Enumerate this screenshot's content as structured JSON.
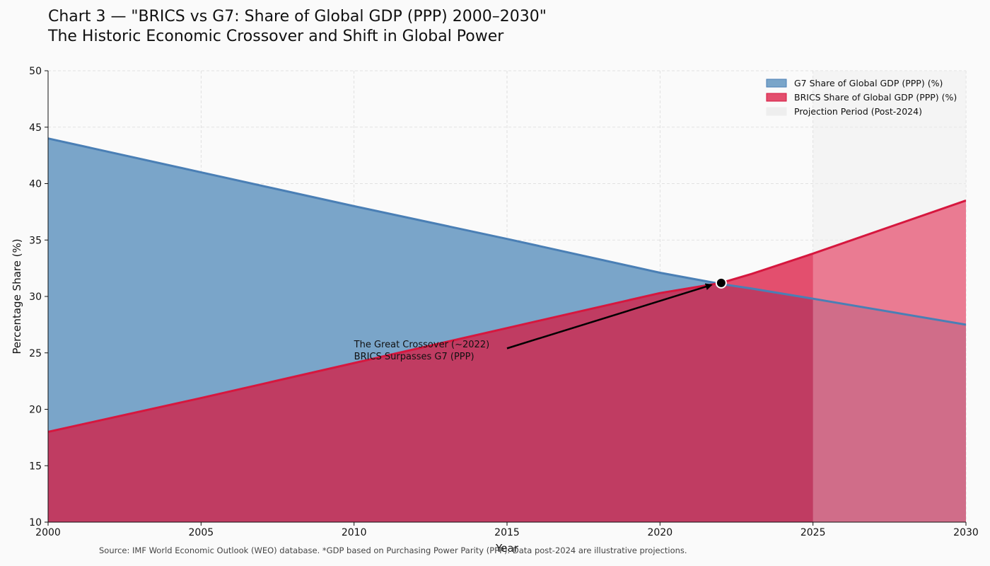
{
  "header": {
    "title": "Chart 3 — \"BRICS vs G7: Share of Global GDP (PPP) 2000–2030\"",
    "subtitle": "The Historic Economic Crossover and Shift in Global Power"
  },
  "footer": {
    "source": "Source: IMF World Economic Outlook (WEO) database. *GDP based on Purchasing Power Parity (PPP). Data post-2024 are illustrative projections."
  },
  "colors": {
    "g7_fill": "#7aa5c9",
    "g7_line": "#4a7fb5",
    "brics_fill": "#c03c62",
    "brics_line": "#d6173e",
    "brics_overfill": "#e34f6e",
    "projection_shade": "#f1f1f1"
  },
  "chart_data": {
    "type": "area",
    "title": "Chart 3 — \"BRICS vs G7: Share of Global GDP (PPP) 2000–2030\"",
    "subtitle": "The Historic Economic Crossover and Shift in Global Power",
    "xlabel": "Year",
    "ylabel": "Percentage Share (%)",
    "xlim": [
      2000,
      2030
    ],
    "ylim": [
      10,
      50
    ],
    "xticks": [
      2000,
      2005,
      2010,
      2015,
      2020,
      2025,
      2030
    ],
    "yticks": [
      10,
      15,
      20,
      25,
      30,
      35,
      40,
      45,
      50
    ],
    "grid": true,
    "legend_position": "top-right",
    "series": [
      {
        "name": "G7 Share of Global GDP (PPP) (%)",
        "x": [
          2000,
          2005,
          2010,
          2015,
          2020,
          2022,
          2023,
          2025,
          2030
        ],
        "values": [
          44.0,
          41.0,
          38.0,
          35.1,
          32.1,
          31.1,
          30.7,
          29.8,
          27.5
        ]
      },
      {
        "name": "BRICS Share of Global GDP (PPP) (%)",
        "x": [
          2000,
          2005,
          2010,
          2015,
          2020,
          2022,
          2023,
          2025,
          2030
        ],
        "values": [
          18.0,
          21.0,
          24.1,
          27.2,
          30.3,
          31.2,
          32.0,
          33.8,
          38.5
        ]
      }
    ],
    "projection_region": {
      "label": "Projection Period (Post-2024)",
      "x_start": 2025,
      "x_end": 2030
    },
    "annotation": {
      "lines": [
        "The Great Crossover (~2022)",
        "BRICS Surpasses G7 (PPP)"
      ],
      "point": [
        2022,
        31.2
      ],
      "text_anchor": [
        2010,
        25.5
      ],
      "arrow_from": [
        2015,
        25.4
      ]
    }
  }
}
